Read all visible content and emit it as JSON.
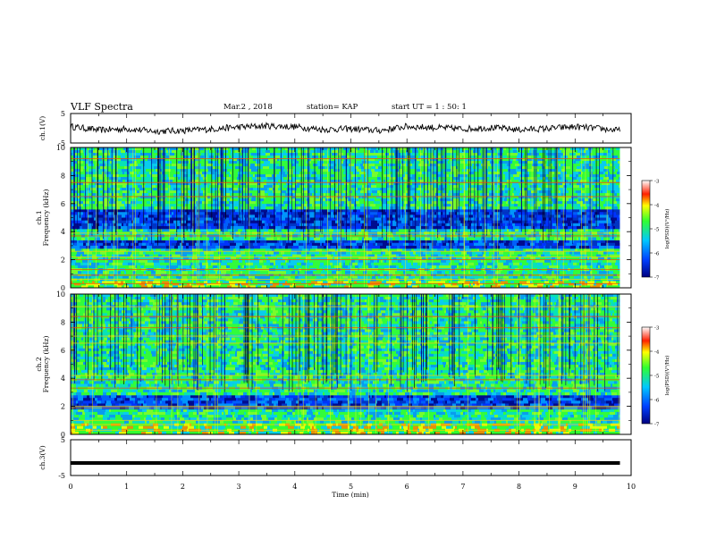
{
  "header": {
    "title": "VLF Spectra",
    "date": "Mar.2 , 2018",
    "station": "station= KAP",
    "start": "start UT = 1 : 50: 1"
  },
  "chart_data": [
    {
      "type": "line",
      "panel": "ch1-waveform",
      "ylabel": "ch.1(V)",
      "ylim": [
        -5,
        5
      ],
      "yticks": [
        "5",
        "-5"
      ],
      "xlim": [
        0,
        10
      ],
      "x": [
        0,
        0.5,
        1,
        1.5,
        2,
        2.5,
        3,
        3.5,
        4,
        4.5,
        5,
        5.5,
        6,
        6.5,
        7,
        7.5,
        8,
        8.5,
        9,
        9.5,
        9.8
      ],
      "values": [
        0.6,
        -0.6,
        -0.2,
        -1.0,
        -0.8,
        -0.3,
        0.4,
        0.8,
        0.5,
        -0.4,
        -0.2,
        -0.8,
        0.6,
        0.2,
        -0.2,
        0.2,
        -0.5,
        -0.1,
        0.5,
        -0.2,
        -0.8
      ]
    },
    {
      "type": "heatmap",
      "panel": "ch1-spectrogram",
      "ylabel": "ch.1\nFrequency (kHz)",
      "ylim": [
        0,
        10
      ],
      "yticks": [
        "0",
        "2",
        "4",
        "6",
        "8",
        "10"
      ],
      "xlim": [
        0,
        10
      ],
      "colorbar": {
        "label": "log(PSD)(V²/Hz)",
        "range": [
          -7,
          -3
        ],
        "ticks": [
          "-3",
          "-4",
          "-5",
          "-6",
          "-7"
        ],
        "colors": [
          "#000080",
          "#0040ff",
          "#00c8ff",
          "#30ff30",
          "#ffff00",
          "#ff2000",
          "#ffffff"
        ]
      },
      "bands_khz": [
        {
          "from": 0.0,
          "to": 0.5,
          "level": "high"
        },
        {
          "from": 0.5,
          "to": 1.0,
          "level": "mid"
        },
        {
          "from": 1.0,
          "to": 2.4,
          "level": "mid"
        },
        {
          "from": 2.4,
          "to": 2.8,
          "level": "mid"
        },
        {
          "from": 2.8,
          "to": 3.4,
          "level": "low"
        },
        {
          "from": 3.4,
          "to": 4.2,
          "level": "mid"
        },
        {
          "from": 4.2,
          "to": 5.6,
          "level": "low"
        },
        {
          "from": 5.6,
          "to": 10.0,
          "level": "mid"
        }
      ]
    },
    {
      "type": "heatmap",
      "panel": "ch2-spectrogram",
      "ylabel": "ch.2\nFrequency (kHz)",
      "ylim": [
        0,
        10
      ],
      "yticks": [
        "0",
        "2",
        "4",
        "6",
        "8",
        "10"
      ],
      "xlim": [
        0,
        10
      ],
      "colorbar": {
        "label": "log(PSD)(V²/Hz)",
        "range": [
          -7,
          -3
        ],
        "ticks": [
          "-3",
          "-4",
          "-5",
          "-6",
          "-7"
        ],
        "colors": [
          "#000080",
          "#0040ff",
          "#00c8ff",
          "#30ff30",
          "#ffff00",
          "#ff2000",
          "#ffffff"
        ]
      },
      "bands_khz": [
        {
          "from": 0.0,
          "to": 0.8,
          "level": "high"
        },
        {
          "from": 0.8,
          "to": 1.8,
          "level": "mid"
        },
        {
          "from": 1.8,
          "to": 2.8,
          "level": "low"
        },
        {
          "from": 2.8,
          "to": 4.0,
          "level": "mid"
        },
        {
          "from": 4.0,
          "to": 10.0,
          "level": "mid"
        }
      ]
    },
    {
      "type": "line",
      "panel": "ch3-waveform",
      "ylabel": "ch.3(V)",
      "ylim": [
        -5,
        5
      ],
      "yticks": [
        "5",
        "-5"
      ],
      "xlim": [
        0,
        10
      ],
      "x": [
        0,
        9.8
      ],
      "values": [
        -1.5,
        -1.5
      ]
    }
  ],
  "xaxis": {
    "label": "Time (min)",
    "ticks": [
      "0",
      "1",
      "2",
      "3",
      "4",
      "5",
      "6",
      "7",
      "8",
      "9",
      "10"
    ]
  }
}
